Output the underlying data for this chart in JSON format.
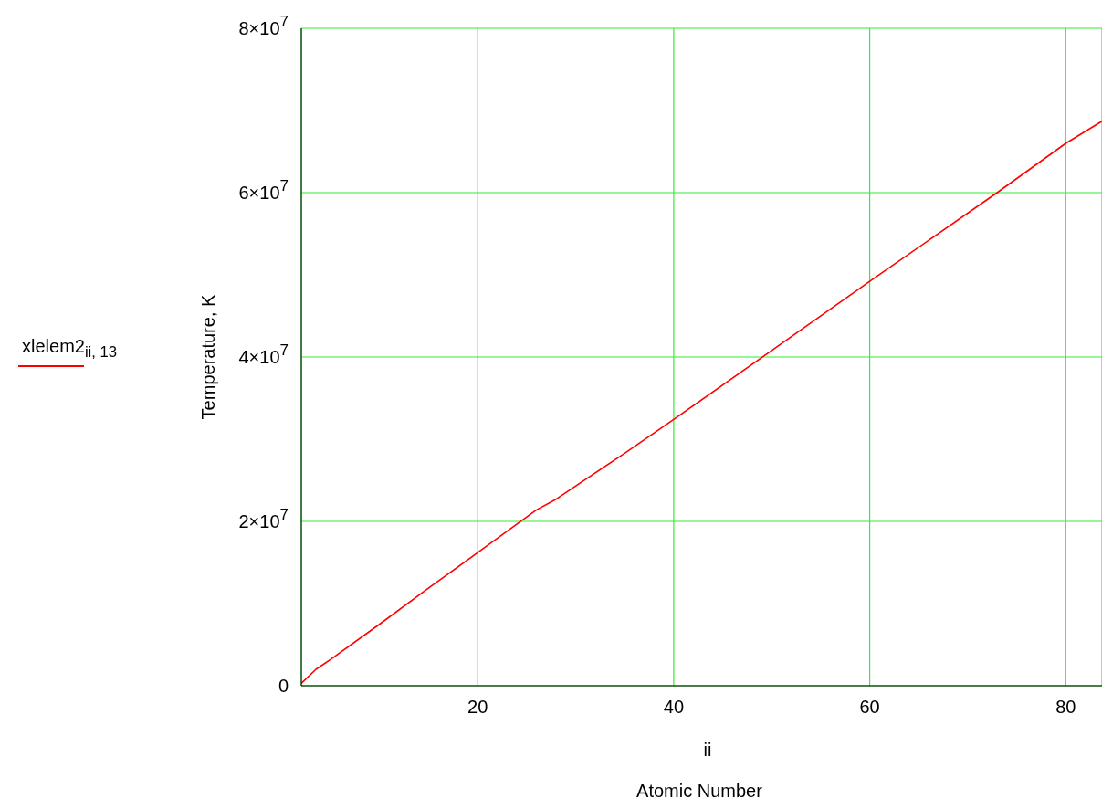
{
  "chart_data": {
    "type": "line",
    "xlabel": "ii",
    "ylabel": "Temperature, K",
    "annotations": [
      "Atomic Number"
    ],
    "x": [
      2,
      3.5,
      5,
      10,
      15,
      20,
      26,
      28,
      35,
      40,
      50,
      60,
      73,
      80,
      83.7
    ],
    "series": [
      {
        "name": "xlelem2$_{ii, 13}$",
        "color": "#ff0000",
        "values": [
          300000.0,
          2000000.0,
          3200000.0,
          7500000.0,
          11900000.0,
          16200000.0,
          21400000.0,
          22700000.0,
          28300000.0,
          32400000.0,
          40800000.0,
          49200000.0,
          60000000.0,
          66000000.0,
          68700000.0
        ]
      }
    ],
    "xlim": [
      2,
      83.7
    ],
    "xticks": [
      20,
      40,
      60,
      80
    ],
    "ylim": [
      0,
      80000000
    ],
    "yticks": [
      0,
      {
        "value": 20000000,
        "label": "2×10$^{7}$"
      },
      {
        "value": 40000000,
        "label": "4×10$^{7}$"
      },
      {
        "value": 60000000,
        "label": "6×10$^{7}$"
      },
      {
        "value": 80000000,
        "label": "8×10$^{7}$"
      }
    ],
    "grid": true,
    "legend": "left",
    "marker": "none",
    "line_style": "solid"
  }
}
